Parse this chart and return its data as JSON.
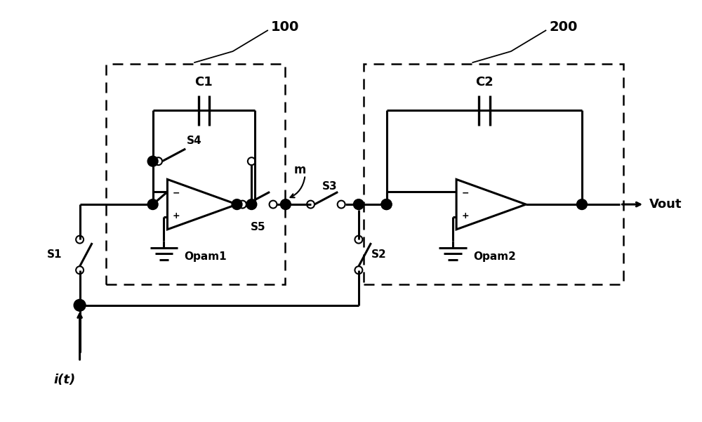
{
  "background_color": "#ffffff",
  "line_color": "#000000",
  "line_width": 2.2,
  "fig_width": 10.0,
  "fig_height": 6.01,
  "label_100": "100",
  "label_200": "200",
  "label_C1": "C1",
  "label_C2": "C2",
  "label_S1": "S1",
  "label_S2": "S2",
  "label_S3": "S3",
  "label_S4": "S4",
  "label_S5": "S5",
  "label_m": "m",
  "label_opam1": "Opam1",
  "label_opam2": "Opam2",
  "label_vout": "Vout",
  "label_it": "i(t)"
}
